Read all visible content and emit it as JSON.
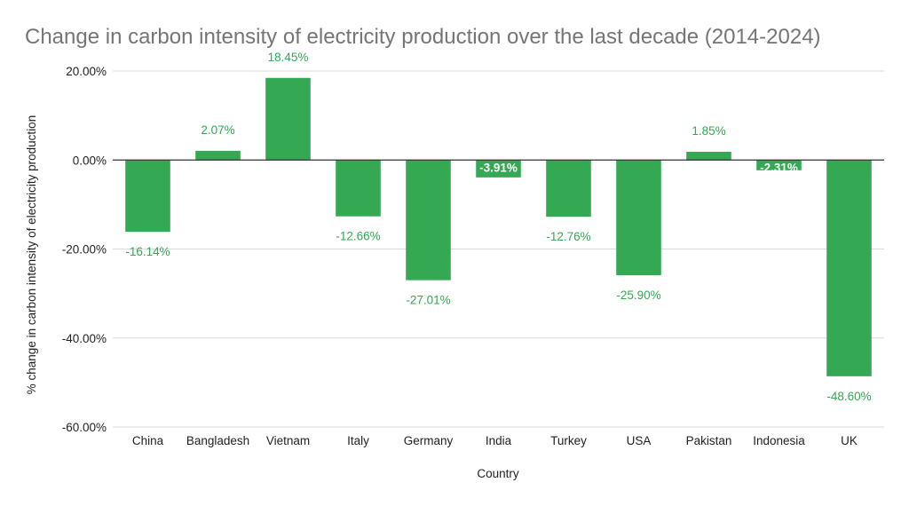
{
  "chart_data": {
    "type": "bar",
    "title": "Change in carbon intensity of electricity production over the last decade (2014-2024)",
    "xlabel": "Country",
    "ylabel": "% change in carbon intensity of electricity production",
    "categories": [
      "China",
      "Bangladesh",
      "Vietnam",
      "Italy",
      "Germany",
      "India",
      "Turkey",
      "USA",
      "Pakistan",
      "Indonesia",
      "UK"
    ],
    "values": [
      -16.14,
      2.07,
      18.45,
      -12.66,
      -27.01,
      -3.91,
      -12.76,
      -25.9,
      1.85,
      -2.31,
      -48.6
    ],
    "data_labels": [
      "-16.14%",
      "2.07%",
      "18.45%",
      "-12.66%",
      "-27.01%",
      "-3.91%",
      "-12.76%",
      "-25.90%",
      "1.85%",
      "-2.31%",
      "-48.60%"
    ],
    "ylim": [
      -60,
      20
    ],
    "yticks": [
      20,
      0,
      -20,
      -40,
      -60
    ],
    "ytick_labels": [
      "20.00%",
      "0.00%",
      "-20.00%",
      "-40.00%",
      "-60.00%"
    ],
    "grid": true,
    "legend": "none",
    "colors": {
      "bar": "#34a853",
      "label": "#34a853",
      "grid": "#d9d9d9",
      "zero_line": "#333333",
      "inside_label": "#ffffff"
    }
  }
}
